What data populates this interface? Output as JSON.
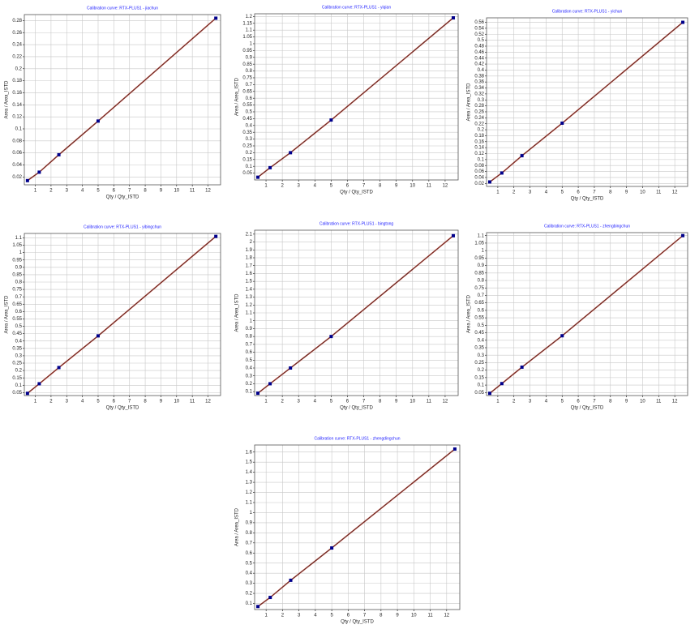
{
  "chart_data": [
    {
      "type": "scatter",
      "title": "Calibration curve: RTX-PLUS1 - jiachun",
      "x_label": "Qty / Qty_ISTD",
      "y_label": "Area / Area_ISTD",
      "x": [
        0.5,
        1.25,
        2.5,
        5,
        12.5
      ],
      "series": [
        {
          "color": "#00008b",
          "values": [
            0.014,
            0.028,
            0.057,
            0.113,
            0.284
          ]
        }
      ],
      "line_color": "#c0392b",
      "xlim": [
        0.3,
        12.8
      ],
      "xticks": [
        1,
        2,
        3,
        4,
        5,
        6,
        7,
        8,
        9,
        10,
        11,
        12
      ],
      "ylim": [
        0.007,
        0.29
      ],
      "yticks": [
        0.02,
        0.04,
        0.06,
        0.08,
        0.1,
        0.12,
        0.14,
        0.16,
        0.18,
        0.2,
        0.22,
        0.24,
        0.26,
        0.28
      ],
      "grid": true
    },
    {
      "type": "scatter",
      "title": "Calibration curve: RTX-PLUS1 - yiqian",
      "x_label": "Qty / Qty_ISTD",
      "y_label": "Area / Area_ISTD",
      "x": [
        0.5,
        1.25,
        2.5,
        5,
        12.5
      ],
      "series": [
        {
          "color": "#00008b",
          "values": [
            0.02,
            0.09,
            0.2,
            0.44,
            1.19
          ]
        }
      ],
      "line_color": "#c0392b",
      "xlim": [
        0.3,
        12.8
      ],
      "xticks": [
        1,
        2,
        3,
        4,
        5,
        6,
        7,
        8,
        9,
        10,
        11,
        12
      ],
      "ylim": [
        0,
        1.22
      ],
      "yticks": [
        0.05,
        0.1,
        0.15,
        0.2,
        0.25,
        0.3,
        0.35,
        0.4,
        0.45,
        0.5,
        0.55,
        0.6,
        0.65,
        0.7,
        0.75,
        0.8,
        0.85,
        0.9,
        0.95,
        1,
        1.05,
        1.1,
        1.15,
        1.2
      ],
      "grid": true
    },
    {
      "type": "scatter",
      "title": "Calibration curve: RTX-PLUS1 - yichun",
      "x_label": "Qty / Qty_ISTD",
      "y_label": "Area / Area_ISTD",
      "x": [
        0.5,
        1.25,
        2.5,
        5,
        12.5
      ],
      "series": [
        {
          "color": "#00008b",
          "values": [
            0.025,
            0.055,
            0.113,
            0.222,
            0.56
          ]
        }
      ],
      "line_color": "#c0392b",
      "xlim": [
        0.3,
        12.8
      ],
      "xticks": [
        1,
        2,
        3,
        4,
        5,
        6,
        7,
        8,
        9,
        10,
        11,
        12
      ],
      "ylim": [
        0.01,
        0.575
      ],
      "yticks": [
        0.02,
        0.04,
        0.06,
        0.08,
        0.1,
        0.12,
        0.14,
        0.16,
        0.18,
        0.2,
        0.22,
        0.24,
        0.26,
        0.28,
        0.3,
        0.32,
        0.34,
        0.36,
        0.38,
        0.4,
        0.42,
        0.44,
        0.46,
        0.48,
        0.5,
        0.52,
        0.54,
        0.56
      ],
      "grid": true
    },
    {
      "type": "scatter",
      "title": "Calibration curve: RTX-PLUS1 - yibingchun",
      "x_label": "Qty / Qty_ISTD",
      "y_label": "Area / Area_ISTD",
      "x": [
        0.5,
        1.25,
        2.5,
        5,
        12.5
      ],
      "series": [
        {
          "color": "#00008b",
          "values": [
            0.045,
            0.11,
            0.22,
            0.435,
            1.11
          ]
        }
      ],
      "line_color": "#c0392b",
      "xlim": [
        0.3,
        12.8
      ],
      "xticks": [
        1,
        2,
        3,
        4,
        5,
        6,
        7,
        8,
        9,
        10,
        11,
        12
      ],
      "ylim": [
        0.03,
        1.13
      ],
      "yticks": [
        0.05,
        0.1,
        0.15,
        0.2,
        0.25,
        0.3,
        0.35,
        0.4,
        0.45,
        0.5,
        0.55,
        0.6,
        0.65,
        0.7,
        0.75,
        0.8,
        0.85,
        0.9,
        0.95,
        1,
        1.05,
        1.1
      ],
      "grid": true
    },
    {
      "type": "scatter",
      "title": "Calibration curve: RTX-PLUS1 - bingtong",
      "x_label": "Qty / Qty_ISTD",
      "y_label": "Area / Area_ISTD",
      "x": [
        0.5,
        1.25,
        2.5,
        5,
        12.5
      ],
      "series": [
        {
          "color": "#00008b",
          "values": [
            0.08,
            0.2,
            0.4,
            0.8,
            2.08
          ]
        }
      ],
      "line_color": "#c0392b",
      "xlim": [
        0.3,
        12.8
      ],
      "xticks": [
        1,
        2,
        3,
        4,
        5,
        6,
        7,
        8,
        9,
        10,
        11,
        12
      ],
      "ylim": [
        0.05,
        2.15
      ],
      "yticks": [
        0.1,
        0.2,
        0.3,
        0.4,
        0.5,
        0.6,
        0.7,
        0.8,
        0.9,
        1,
        1.1,
        1.2,
        1.3,
        1.4,
        1.5,
        1.6,
        1.7,
        1.8,
        1.9,
        2,
        2.1
      ],
      "grid": true
    },
    {
      "type": "scatter",
      "title": "Calibration curve: RTX-PLUS1 - zhengbingchun",
      "x_label": "Qty / Qty_ISTD",
      "y_label": "Area / Area_ISTD",
      "x": [
        0.5,
        1.25,
        2.5,
        5,
        12.5
      ],
      "series": [
        {
          "color": "#00008b",
          "values": [
            0.045,
            0.11,
            0.22,
            0.43,
            1.1
          ]
        }
      ],
      "line_color": "#c0392b",
      "xlim": [
        0.3,
        12.8
      ],
      "xticks": [
        1,
        2,
        3,
        4,
        5,
        6,
        7,
        8,
        9,
        10,
        11,
        12
      ],
      "ylim": [
        0.03,
        1.12
      ],
      "yticks": [
        0.05,
        0.1,
        0.15,
        0.2,
        0.25,
        0.3,
        0.35,
        0.4,
        0.45,
        0.5,
        0.55,
        0.6,
        0.65,
        0.7,
        0.75,
        0.8,
        0.85,
        0.9,
        0.95,
        1,
        1.05,
        1.1
      ],
      "grid": true
    },
    {
      "type": "scatter",
      "title": "Calibration curve: RTX-PLUS1 - zhengdingchun",
      "x_label": "Qty / Qty_ISTD",
      "y_label": "Area / Area_ISTD",
      "x": [
        0.5,
        1.25,
        2.5,
        5,
        12.5
      ],
      "series": [
        {
          "color": "#00008b",
          "values": [
            0.07,
            0.16,
            0.33,
            0.65,
            1.63
          ]
        }
      ],
      "line_color": "#c0392b",
      "xlim": [
        0.3,
        12.8
      ],
      "xticks": [
        1,
        2,
        3,
        4,
        5,
        6,
        7,
        8,
        9,
        10,
        11,
        12
      ],
      "ylim": [
        0.04,
        1.67
      ],
      "yticks": [
        0.1,
        0.2,
        0.3,
        0.4,
        0.5,
        0.6,
        0.7,
        0.8,
        0.9,
        1,
        1.1,
        1.2,
        1.3,
        1.4,
        1.5,
        1.6
      ],
      "grid": true
    }
  ]
}
